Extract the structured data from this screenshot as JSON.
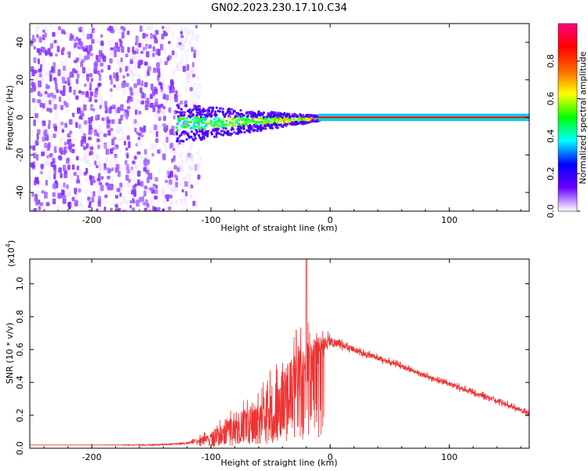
{
  "title": "GN02.2023.230.17.10.C34",
  "chart_data": [
    {
      "type": "heatmap",
      "xlabel": "Height of straight line (km)",
      "ylabel": "Frequency (Hz)",
      "xlim": [
        -252,
        167
      ],
      "ylim": [
        -50,
        50
      ],
      "xticks": [
        "-200",
        "-100",
        "0",
        "100"
      ],
      "xtick_values": [
        -200,
        -100,
        0,
        100
      ],
      "yticks": [
        "-40",
        "-20",
        "0",
        "20",
        "40"
      ],
      "ytick_values": [
        -40,
        -20,
        0,
        20,
        40
      ],
      "colorbar": {
        "label": "Normalized spectral amplitude",
        "range": [
          0,
          1
        ],
        "ticks": [
          "0.0",
          "0.2",
          "0.4",
          "0.6",
          "0.8"
        ],
        "tick_values": [
          0,
          0.2,
          0.4,
          0.6,
          0.8
        ],
        "colormap": [
          "#ffffff",
          "#6a00ff",
          "#0000ff",
          "#00ffff",
          "#00ff00",
          "#ffff00",
          "#ff6600",
          "#ff0000",
          "#ff0080"
        ]
      },
      "regions": [
        {
          "name": "broadband noise",
          "x_range": [
            -252,
            -110
          ],
          "freq_range": [
            -50,
            50
          ],
          "amplitude": 0.05
        },
        {
          "name": "signal onset",
          "x_range": [
            -130,
            -10
          ],
          "freq_range": [
            -10,
            4
          ],
          "amplitude": 0.35
        },
        {
          "name": "narrow carrier",
          "x_range": [
            -10,
            167
          ],
          "freq_range": [
            -0.5,
            0.5
          ],
          "amplitude": 0.8
        }
      ]
    },
    {
      "type": "line",
      "xlabel": "Height of straight line (km)",
      "ylabel": "SNR (10 * v/v)",
      "yscale_label": "(x10",
      "yscale_exponent": "4",
      "yscale_suffix": ")",
      "xlim": [
        -252,
        167
      ],
      "ylim": [
        0,
        1.15
      ],
      "xticks": [
        "-200",
        "-100",
        "0",
        "100"
      ],
      "xtick_values": [
        -200,
        -100,
        0,
        100
      ],
      "yticks": [
        "0.0",
        "0.2",
        "0.4",
        "0.6",
        "0.8",
        "1.0"
      ],
      "ytick_values": [
        0,
        0.2,
        0.4,
        0.6,
        0.8,
        1.0
      ],
      "color": "#ee3333",
      "series": [
        {
          "x": [
            -252,
            -200,
            -150,
            -120,
            -110,
            -100,
            -90,
            -80,
            -70,
            -60,
            -50,
            -40,
            -30,
            -20,
            -15,
            -10,
            -5,
            0,
            10,
            20,
            30,
            40,
            60,
            80,
            100,
            120,
            140,
            160,
            167
          ],
          "y": [
            0.02,
            0.02,
            0.02,
            0.03,
            0.05,
            0.07,
            0.12,
            0.15,
            0.18,
            0.22,
            0.28,
            0.35,
            0.42,
            0.5,
            0.58,
            0.62,
            0.64,
            0.65,
            0.63,
            0.6,
            0.57,
            0.55,
            0.5,
            0.44,
            0.39,
            0.34,
            0.29,
            0.23,
            0.21
          ],
          "noise": [
            0,
            0,
            0.005,
            0.01,
            0.03,
            0.05,
            0.08,
            0.1,
            0.13,
            0.16,
            0.2,
            0.25,
            0.3,
            0.33,
            0.18,
            0.12,
            0.09,
            0.06,
            0.04,
            0.03,
            0.03,
            0.03,
            0.025,
            0.025,
            0.025,
            0.025,
            0.025,
            0.025,
            0.025
          ],
          "peak": {
            "x": -20,
            "y": 1.15
          }
        }
      ]
    }
  ]
}
